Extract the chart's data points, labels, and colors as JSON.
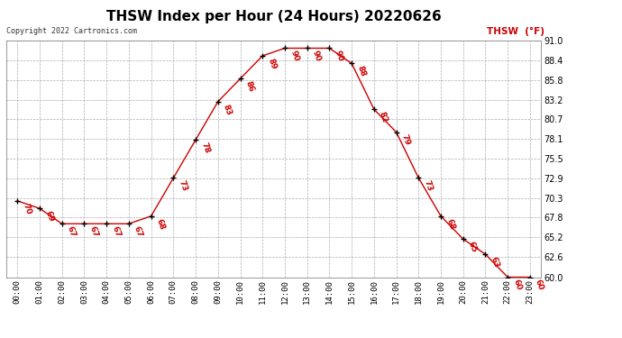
{
  "title": "THSW Index per Hour (24 Hours) 20220626",
  "copyright": "Copyright 2022 Cartronics.com",
  "legend_label": "THSW  (°F)",
  "hours": [
    0,
    1,
    2,
    3,
    4,
    5,
    6,
    7,
    8,
    9,
    10,
    11,
    12,
    13,
    14,
    15,
    16,
    17,
    18,
    19,
    20,
    21,
    22,
    23
  ],
  "values": [
    70,
    69,
    67,
    67,
    67,
    67,
    68,
    73,
    78,
    83,
    86,
    89,
    90,
    90,
    90,
    88,
    82,
    79,
    73,
    68,
    65,
    63,
    60,
    60
  ],
  "line_color": "#cc0000",
  "marker_color": "#000000",
  "label_color": "#cc0000",
  "background_color": "#ffffff",
  "grid_color": "#999999",
  "ylim": [
    60.0,
    91.0
  ],
  "yticks": [
    60.0,
    62.6,
    65.2,
    67.8,
    70.3,
    72.9,
    75.5,
    78.1,
    80.7,
    83.2,
    85.8,
    88.4,
    91.0
  ],
  "title_fontsize": 11,
  "label_fontsize": 6.5,
  "axis_fontsize": 6.5
}
